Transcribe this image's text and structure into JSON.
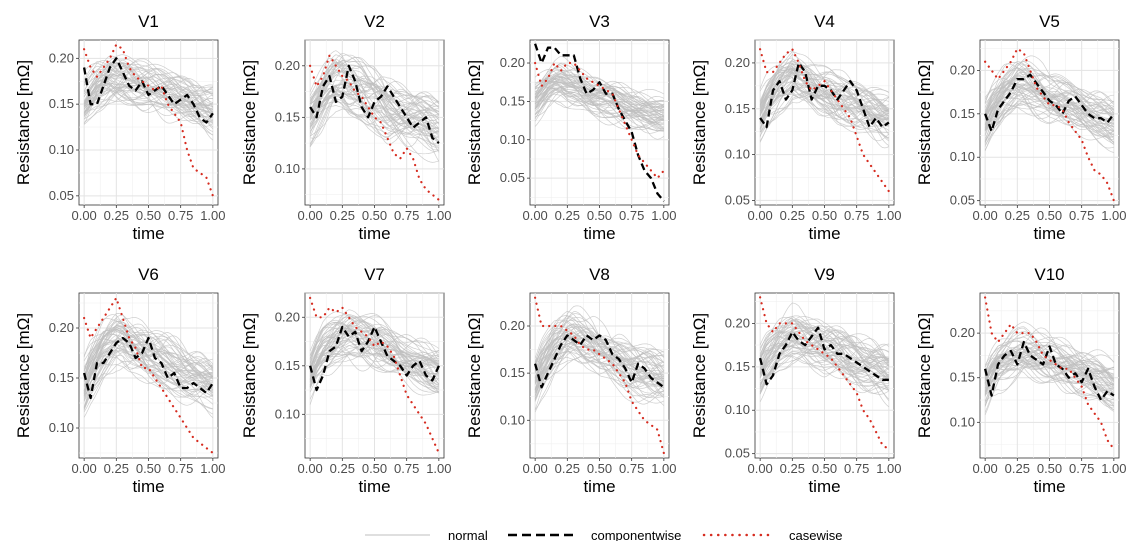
{
  "chart_data": {
    "type": "line",
    "facet_layout": "2 rows x 5 columns",
    "legend_position": "bottom",
    "grid": true,
    "xlabel": "time",
    "ylabel": "Resistance [mΩ]",
    "x": [
      0.0,
      0.05,
      0.1,
      0.15,
      0.2,
      0.25,
      0.3,
      0.35,
      0.4,
      0.45,
      0.5,
      0.55,
      0.6,
      0.65,
      0.7,
      0.75,
      0.8,
      0.85,
      0.9,
      0.95,
      1.0
    ],
    "xticks": [
      "0.00",
      "0.25",
      "0.50",
      "0.75",
      "1.00"
    ],
    "legend": [
      {
        "key": "normal",
        "label": "normal",
        "color": "#bfbfbf",
        "style": "solid"
      },
      {
        "key": "componentwise",
        "label": "componentwise",
        "color": "#000000",
        "style": "dashed"
      },
      {
        "key": "casewise",
        "label": "casewise",
        "color": "#d62c20",
        "style": "dotted"
      }
    ],
    "normal_band_note": "about 60 light-grey curves per panel",
    "panels": [
      {
        "title": "V1",
        "ylim": [
          0.04,
          0.22
        ],
        "yticks": [
          "0.05",
          "0.10",
          "0.15",
          "0.20"
        ],
        "normal_center": [
          0.15,
          0.16,
          0.17,
          0.175,
          0.18,
          0.18,
          0.18,
          0.178,
          0.175,
          0.172,
          0.17,
          0.168,
          0.165,
          0.162,
          0.16,
          0.157,
          0.155,
          0.152,
          0.15,
          0.147,
          0.145
        ],
        "normal_spread": 0.025,
        "componentwise": [
          0.19,
          0.15,
          0.15,
          0.17,
          0.19,
          0.2,
          0.185,
          0.17,
          0.165,
          0.175,
          0.16,
          0.165,
          0.17,
          0.16,
          0.15,
          0.155,
          0.16,
          0.15,
          0.135,
          0.13,
          0.14
        ],
        "casewise": [
          0.21,
          0.19,
          0.18,
          0.19,
          0.2,
          0.215,
          0.21,
          0.19,
          0.18,
          0.175,
          0.17,
          0.165,
          0.17,
          0.15,
          0.14,
          0.13,
          0.1,
          0.08,
          0.075,
          0.07,
          0.05
        ]
      },
      {
        "title": "V2",
        "ylim": [
          0.065,
          0.225
        ],
        "yticks": [
          "0.10",
          "0.15",
          "0.20"
        ],
        "normal_center": [
          0.15,
          0.16,
          0.17,
          0.18,
          0.185,
          0.185,
          0.18,
          0.178,
          0.175,
          0.17,
          0.168,
          0.165,
          0.16,
          0.158,
          0.155,
          0.152,
          0.15,
          0.148,
          0.145,
          0.142,
          0.14
        ],
        "normal_spread": 0.028,
        "componentwise": [
          0.16,
          0.15,
          0.18,
          0.19,
          0.165,
          0.17,
          0.2,
          0.185,
          0.16,
          0.15,
          0.165,
          0.17,
          0.18,
          0.17,
          0.16,
          0.15,
          0.14,
          0.145,
          0.15,
          0.13,
          0.125
        ],
        "casewise": [
          0.2,
          0.18,
          0.19,
          0.21,
          0.2,
          0.19,
          0.185,
          0.175,
          0.17,
          0.16,
          0.15,
          0.145,
          0.13,
          0.115,
          0.11,
          0.12,
          0.11,
          0.09,
          0.08,
          0.075,
          0.07
        ]
      },
      {
        "title": "V3",
        "ylim": [
          0.015,
          0.23
        ],
        "yticks": [
          "0.05",
          "0.10",
          "0.15",
          "0.20"
        ],
        "normal_center": [
          0.15,
          0.16,
          0.17,
          0.175,
          0.175,
          0.17,
          0.168,
          0.165,
          0.16,
          0.155,
          0.152,
          0.15,
          0.148,
          0.145,
          0.142,
          0.14,
          0.138,
          0.135,
          0.132,
          0.13,
          0.13
        ],
        "normal_spread": 0.025,
        "componentwise": [
          0.225,
          0.2,
          0.22,
          0.22,
          0.21,
          0.21,
          0.21,
          0.18,
          0.16,
          0.165,
          0.175,
          0.16,
          0.16,
          0.14,
          0.125,
          0.11,
          0.08,
          0.06,
          0.05,
          0.03,
          0.02
        ],
        "casewise": [
          0.2,
          0.17,
          0.18,
          0.2,
          0.19,
          0.2,
          0.2,
          0.19,
          0.18,
          0.175,
          0.17,
          0.165,
          0.16,
          0.14,
          0.12,
          0.1,
          0.08,
          0.07,
          0.06,
          0.05,
          0.06
        ]
      },
      {
        "title": "V4",
        "ylim": [
          0.045,
          0.225
        ],
        "yticks": [
          "0.05",
          "0.10",
          "0.15",
          "0.20"
        ],
        "normal_center": [
          0.14,
          0.155,
          0.165,
          0.175,
          0.18,
          0.185,
          0.18,
          0.178,
          0.175,
          0.17,
          0.168,
          0.165,
          0.16,
          0.158,
          0.155,
          0.152,
          0.15,
          0.148,
          0.145,
          0.142,
          0.14
        ],
        "normal_spread": 0.026,
        "componentwise": [
          0.14,
          0.13,
          0.17,
          0.18,
          0.16,
          0.17,
          0.2,
          0.19,
          0.16,
          0.175,
          0.175,
          0.17,
          0.16,
          0.17,
          0.18,
          0.17,
          0.15,
          0.13,
          0.14,
          0.13,
          0.135
        ],
        "casewise": [
          0.215,
          0.19,
          0.19,
          0.2,
          0.21,
          0.215,
          0.2,
          0.18,
          0.17,
          0.175,
          0.18,
          0.17,
          0.16,
          0.15,
          0.14,
          0.12,
          0.1,
          0.09,
          0.08,
          0.07,
          0.06
        ]
      },
      {
        "title": "V5",
        "ylim": [
          0.045,
          0.235
        ],
        "yticks": [
          "0.05",
          "0.10",
          "0.15",
          "0.20"
        ],
        "normal_center": [
          0.14,
          0.155,
          0.165,
          0.175,
          0.18,
          0.185,
          0.185,
          0.182,
          0.178,
          0.175,
          0.17,
          0.168,
          0.165,
          0.162,
          0.158,
          0.155,
          0.152,
          0.15,
          0.148,
          0.145,
          0.142
        ],
        "normal_spread": 0.028,
        "componentwise": [
          0.15,
          0.13,
          0.155,
          0.165,
          0.175,
          0.19,
          0.19,
          0.195,
          0.185,
          0.175,
          0.165,
          0.16,
          0.15,
          0.165,
          0.17,
          0.16,
          0.15,
          0.145,
          0.145,
          0.14,
          0.15
        ],
        "casewise": [
          0.21,
          0.2,
          0.19,
          0.2,
          0.21,
          0.225,
          0.22,
          0.2,
          0.18,
          0.17,
          0.16,
          0.16,
          0.155,
          0.14,
          0.13,
          0.12,
          0.1,
          0.085,
          0.08,
          0.07,
          0.05
        ]
      },
      {
        "title": "V6",
        "ylim": [
          0.07,
          0.235
        ],
        "yticks": [
          "0.10",
          "0.15",
          "0.20"
        ],
        "normal_center": [
          0.14,
          0.155,
          0.165,
          0.175,
          0.18,
          0.185,
          0.185,
          0.18,
          0.178,
          0.175,
          0.17,
          0.168,
          0.165,
          0.162,
          0.158,
          0.155,
          0.152,
          0.15,
          0.148,
          0.145,
          0.142
        ],
        "normal_spread": 0.026,
        "componentwise": [
          0.155,
          0.13,
          0.165,
          0.165,
          0.175,
          0.185,
          0.19,
          0.185,
          0.17,
          0.175,
          0.19,
          0.17,
          0.165,
          0.15,
          0.155,
          0.14,
          0.14,
          0.145,
          0.14,
          0.135,
          0.145
        ],
        "casewise": [
          0.21,
          0.19,
          0.2,
          0.21,
          0.22,
          0.23,
          0.21,
          0.19,
          0.18,
          0.16,
          0.16,
          0.15,
          0.14,
          0.13,
          0.12,
          0.11,
          0.1,
          0.09,
          0.085,
          0.08,
          0.075
        ]
      },
      {
        "title": "V7",
        "ylim": [
          0.055,
          0.225
        ],
        "yticks": [
          "0.10",
          "0.15",
          "0.20"
        ],
        "normal_center": [
          0.14,
          0.155,
          0.165,
          0.17,
          0.175,
          0.178,
          0.18,
          0.178,
          0.175,
          0.172,
          0.17,
          0.168,
          0.165,
          0.162,
          0.158,
          0.155,
          0.152,
          0.15,
          0.148,
          0.145,
          0.142
        ],
        "normal_spread": 0.025,
        "componentwise": [
          0.15,
          0.125,
          0.14,
          0.165,
          0.17,
          0.19,
          0.18,
          0.185,
          0.165,
          0.175,
          0.19,
          0.175,
          0.16,
          0.155,
          0.15,
          0.14,
          0.15,
          0.155,
          0.14,
          0.135,
          0.15
        ],
        "casewise": [
          0.22,
          0.2,
          0.2,
          0.21,
          0.205,
          0.21,
          0.2,
          0.19,
          0.185,
          0.18,
          0.17,
          0.175,
          0.17,
          0.16,
          0.14,
          0.12,
          0.11,
          0.1,
          0.09,
          0.075,
          0.06
        ]
      },
      {
        "title": "V8",
        "ylim": [
          0.06,
          0.235
        ],
        "yticks": [
          "0.10",
          "0.15",
          "0.20"
        ],
        "normal_center": [
          0.14,
          0.155,
          0.165,
          0.175,
          0.18,
          0.185,
          0.185,
          0.182,
          0.178,
          0.175,
          0.17,
          0.168,
          0.165,
          0.162,
          0.158,
          0.155,
          0.152,
          0.15,
          0.148,
          0.145,
          0.142
        ],
        "normal_spread": 0.028,
        "componentwise": [
          0.16,
          0.135,
          0.15,
          0.165,
          0.18,
          0.19,
          0.185,
          0.18,
          0.19,
          0.185,
          0.19,
          0.185,
          0.17,
          0.165,
          0.155,
          0.14,
          0.16,
          0.155,
          0.145,
          0.14,
          0.135
        ],
        "casewise": [
          0.23,
          0.2,
          0.2,
          0.2,
          0.2,
          0.195,
          0.19,
          0.18,
          0.175,
          0.175,
          0.17,
          0.165,
          0.16,
          0.15,
          0.14,
          0.12,
          0.11,
          0.1,
          0.095,
          0.09,
          0.065
        ]
      },
      {
        "title": "V9",
        "ylim": [
          0.045,
          0.235
        ],
        "yticks": [
          "0.05",
          "0.10",
          "0.15",
          "0.20"
        ],
        "normal_center": [
          0.14,
          0.155,
          0.165,
          0.175,
          0.18,
          0.185,
          0.185,
          0.182,
          0.178,
          0.175,
          0.17,
          0.168,
          0.165,
          0.162,
          0.158,
          0.155,
          0.152,
          0.15,
          0.148,
          0.145,
          0.142
        ],
        "normal_spread": 0.028,
        "componentwise": [
          0.16,
          0.13,
          0.14,
          0.165,
          0.175,
          0.19,
          0.18,
          0.175,
          0.185,
          0.195,
          0.17,
          0.175,
          0.165,
          0.165,
          0.16,
          0.155,
          0.15,
          0.145,
          0.14,
          0.135,
          0.135
        ],
        "casewise": [
          0.23,
          0.2,
          0.19,
          0.2,
          0.2,
          0.2,
          0.19,
          0.18,
          0.175,
          0.17,
          0.165,
          0.16,
          0.15,
          0.14,
          0.13,
          0.12,
          0.1,
          0.09,
          0.075,
          0.06,
          0.055
        ]
      },
      {
        "title": "V10",
        "ylim": [
          0.06,
          0.245
        ],
        "yticks": [
          "0.10",
          "0.15",
          "0.20"
        ],
        "normal_center": [
          0.14,
          0.155,
          0.165,
          0.17,
          0.175,
          0.178,
          0.18,
          0.178,
          0.175,
          0.172,
          0.17,
          0.168,
          0.165,
          0.162,
          0.158,
          0.155,
          0.152,
          0.15,
          0.148,
          0.145,
          0.142
        ],
        "normal_spread": 0.026,
        "componentwise": [
          0.16,
          0.13,
          0.165,
          0.175,
          0.18,
          0.165,
          0.19,
          0.175,
          0.17,
          0.165,
          0.185,
          0.165,
          0.16,
          0.15,
          0.155,
          0.145,
          0.16,
          0.14,
          0.125,
          0.135,
          0.13
        ],
        "casewise": [
          0.24,
          0.2,
          0.19,
          0.2,
          0.21,
          0.2,
          0.2,
          0.2,
          0.19,
          0.175,
          0.17,
          0.165,
          0.16,
          0.16,
          0.15,
          0.14,
          0.12,
          0.11,
          0.1,
          0.08,
          0.07
        ]
      }
    ]
  }
}
